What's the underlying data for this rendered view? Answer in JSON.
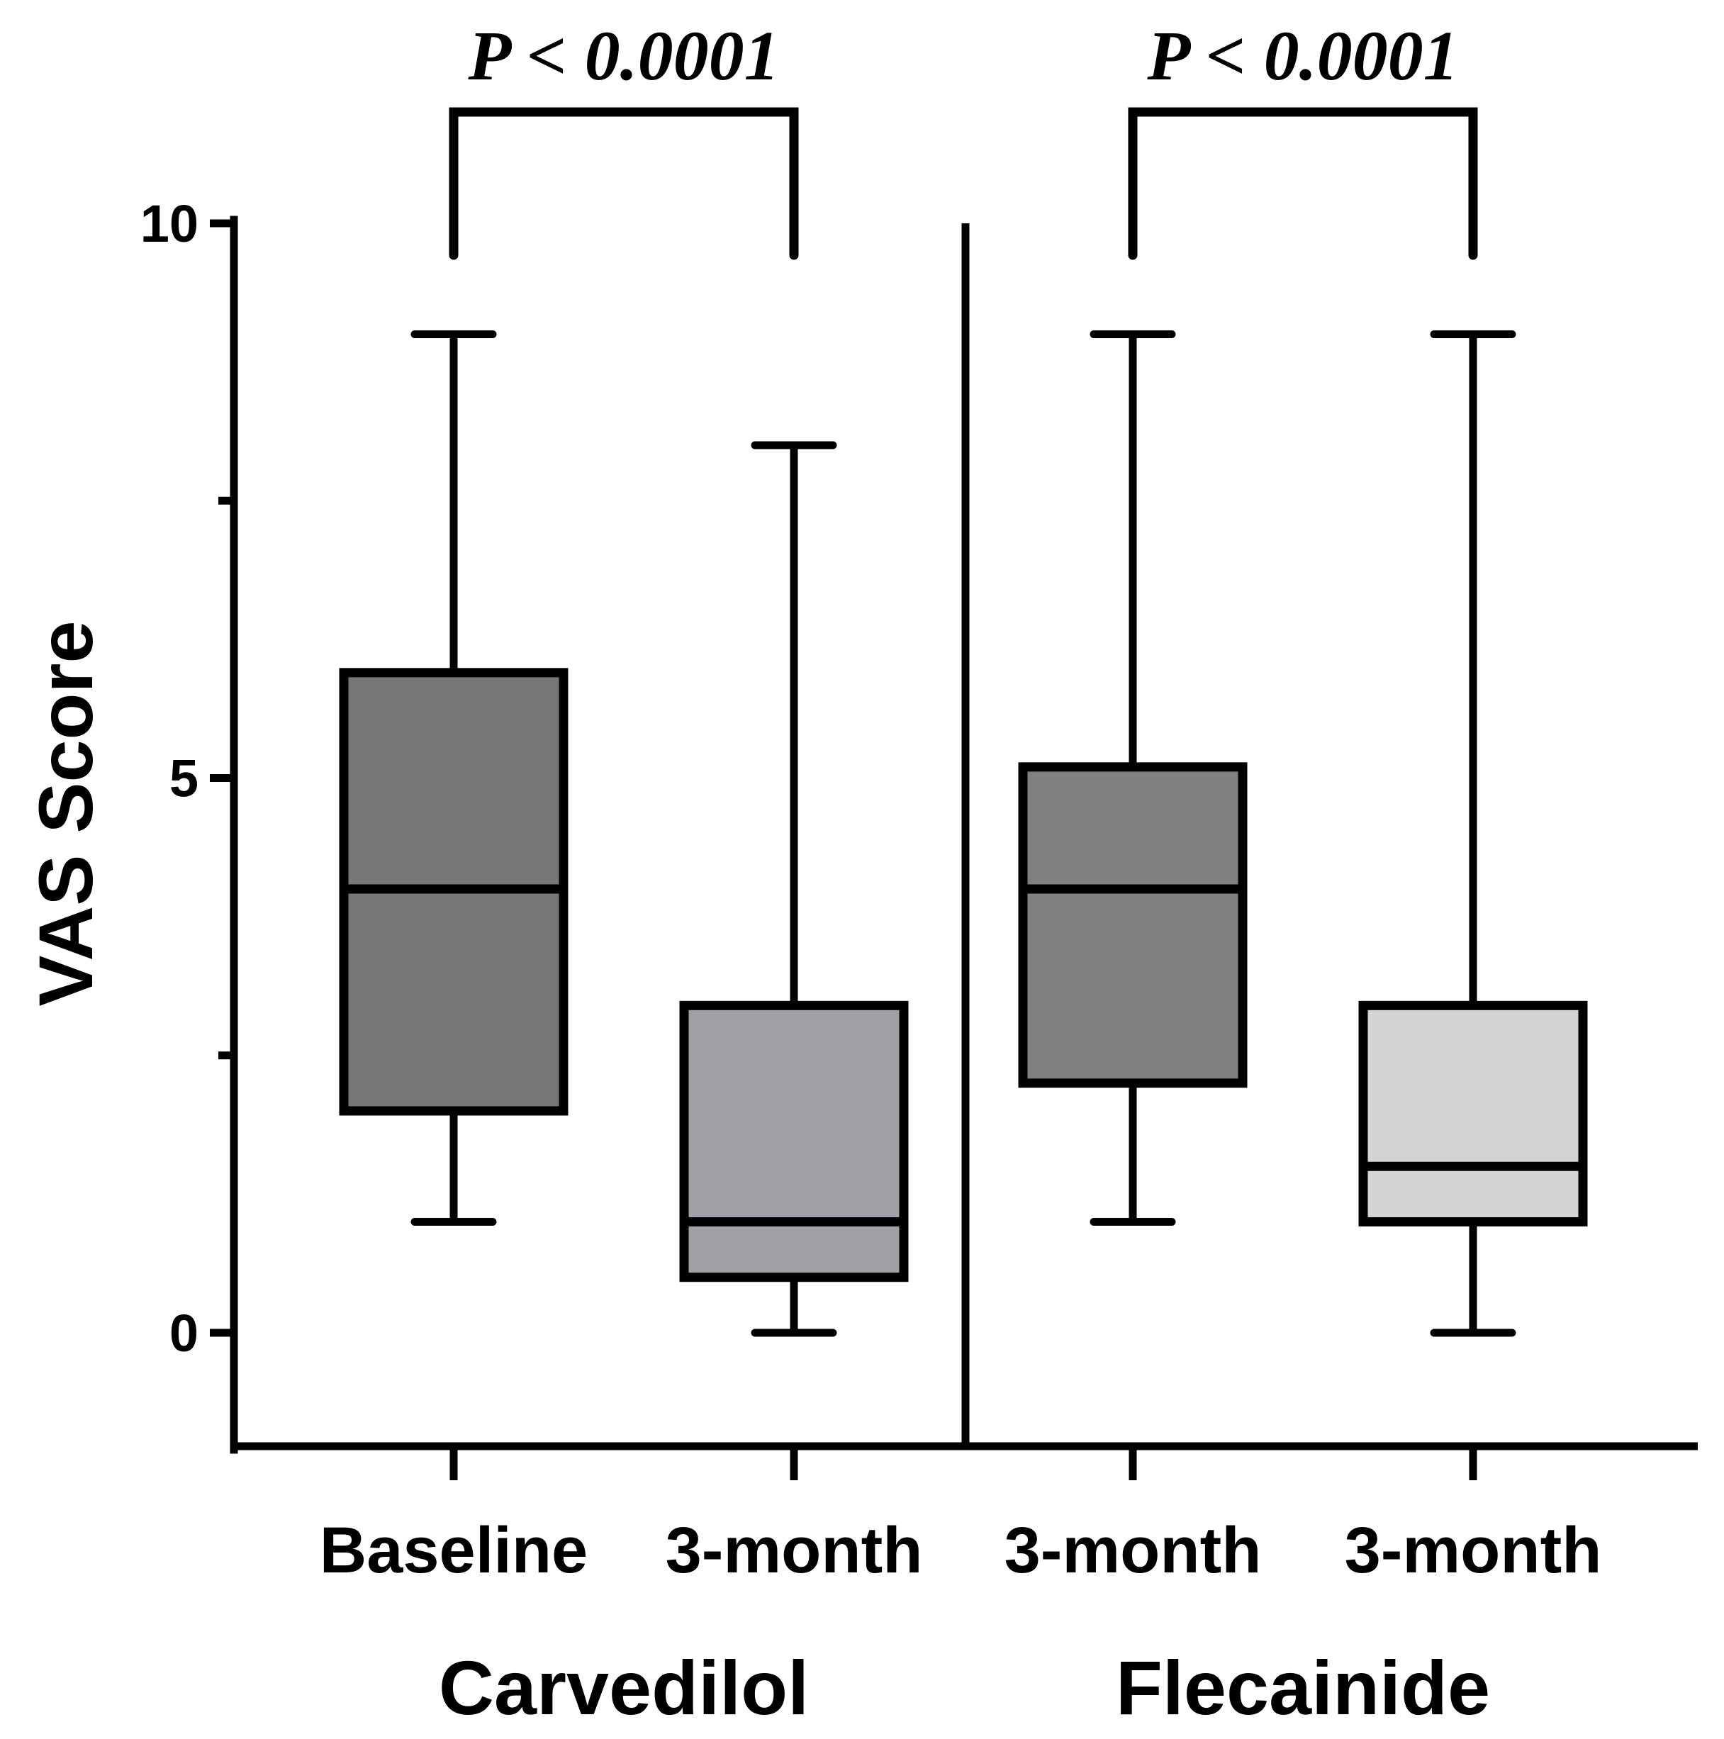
{
  "chart_data": {
    "type": "boxplot",
    "ylabel": "VAS Score",
    "ylim": [
      -1,
      10
    ],
    "yticks": [
      {
        "value": 0,
        "label": "0"
      },
      {
        "value": 5,
        "label": "5"
      },
      {
        "value": 10,
        "label": "10"
      }
    ],
    "minor_yticks": [
      2.5,
      7.5
    ],
    "boxes": [
      {
        "label": "Baseline",
        "group": "Carvedilol",
        "min": 1,
        "q1": 2,
        "median": 4,
        "q3": 5.95,
        "max": 9,
        "fill": "#777777"
      },
      {
        "label": "3-month",
        "group": "Carvedilol",
        "min": 0,
        "q1": 0.5,
        "median": 1,
        "q3": 2.95,
        "max": 8,
        "fill": "#a0a0a6"
      },
      {
        "label": "3-month",
        "group": "Flecainide",
        "min": 1,
        "q1": 2.25,
        "median": 4,
        "q3": 5.1,
        "max": 9,
        "fill": "#808080"
      },
      {
        "label": "3-month",
        "group": "Flecainide",
        "min": 0,
        "q1": 1,
        "median": 1.5,
        "q3": 2.95,
        "max": 9,
        "fill": "#d4d4d4"
      }
    ],
    "groups": [
      {
        "name": "Carvedilol",
        "boxes": [
          0,
          1
        ]
      },
      {
        "name": "Flecainide",
        "boxes": [
          2,
          3
        ]
      }
    ],
    "comparisons": [
      {
        "from": 0,
        "to": 1,
        "label": "P < 0.0001"
      },
      {
        "from": 2,
        "to": 3,
        "label": "P < 0.0001"
      }
    ],
    "group_separator": true
  }
}
